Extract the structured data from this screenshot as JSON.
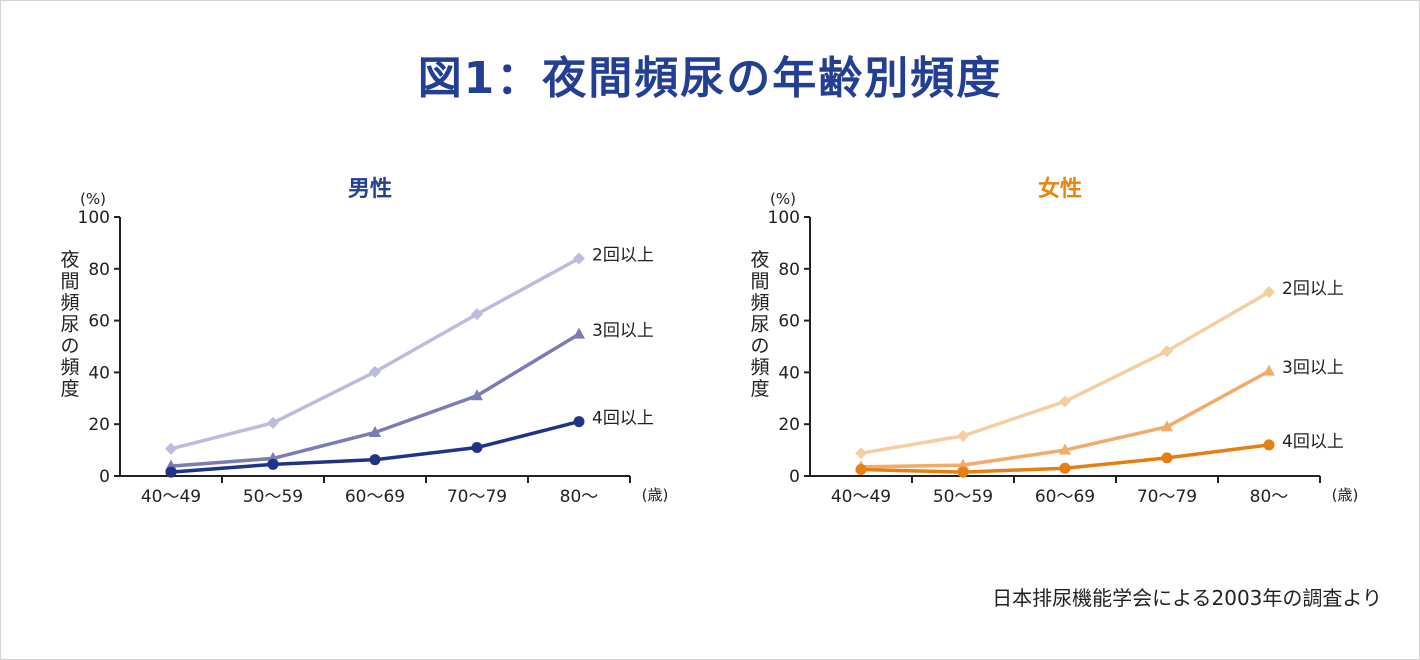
{
  "title": "図1：夜間頻尿の年齢別頻度",
  "source_note": "日本排尿機能学会による2003年の調査より",
  "chart_data": [
    {
      "type": "line",
      "title": "男性",
      "title_color": "#233f94",
      "ylabel": "夜間頻尿の頻度",
      "yunit": "(%)",
      "xunit": "(歳)",
      "categories": [
        "40〜49",
        "50〜59",
        "60〜69",
        "70〜79",
        "80〜"
      ],
      "ylim": [
        0,
        100
      ],
      "yticks": [
        0,
        20,
        40,
        60,
        80,
        100
      ],
      "grid": false,
      "legend": "end-of-line labels",
      "series": [
        {
          "name": "2回以上",
          "values": [
            10.5,
            20.5,
            40.2,
            62.5,
            84
          ],
          "color": "#bcbcde",
          "marker": "diamond"
        },
        {
          "name": "3回以上",
          "values": [
            3.8,
            6.8,
            16.8,
            31,
            54.8
          ],
          "color": "#7b7bb5",
          "marker": "triangle"
        },
        {
          "name": "4回以上",
          "values": [
            1.5,
            4.5,
            6.3,
            11,
            21
          ],
          "color": "#1f3486",
          "marker": "circle"
        }
      ]
    },
    {
      "type": "line",
      "title": "女性",
      "title_color": "#e8850c",
      "ylabel": "夜間頻尿の頻度",
      "yunit": "(%)",
      "xunit": "(歳)",
      "categories": [
        "40〜49",
        "50〜59",
        "60〜69",
        "70〜79",
        "80〜"
      ],
      "ylim": [
        0,
        100
      ],
      "yticks": [
        0,
        20,
        40,
        60,
        80,
        100
      ],
      "grid": false,
      "legend": "end-of-line labels",
      "series": [
        {
          "name": "2回以上",
          "values": [
            8.8,
            15.5,
            28.8,
            48.2,
            71
          ],
          "color": "#f5cfa0",
          "marker": "diamond"
        },
        {
          "name": "3回以上",
          "values": [
            3.5,
            4.2,
            10,
            19,
            40.5
          ],
          "color": "#f0ac68",
          "marker": "triangle"
        },
        {
          "name": "4回以上",
          "values": [
            2.5,
            1.5,
            3,
            7,
            12
          ],
          "color": "#e57f12",
          "marker": "circle"
        }
      ]
    }
  ]
}
